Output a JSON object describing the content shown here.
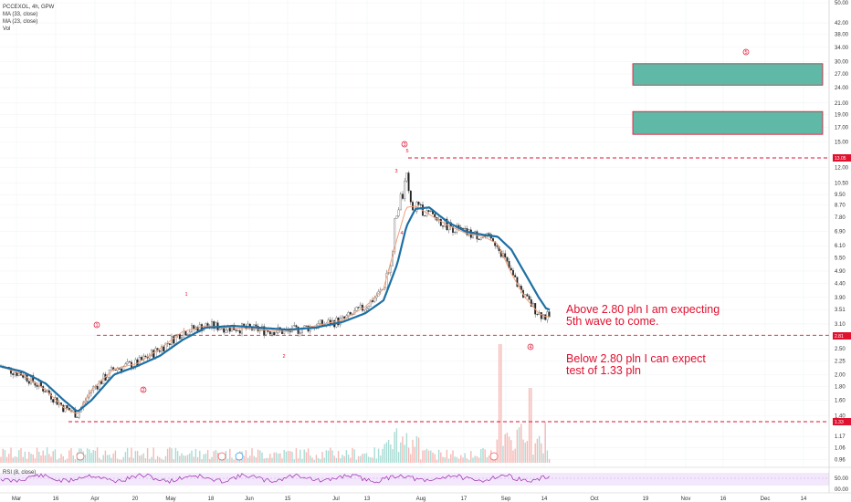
{
  "header": {
    "symbol_line": "PCCEXOL, 4h, GPW",
    "ma1": "MA (33, close)",
    "ma2": "MA (23, close)",
    "vol": "Vol",
    "rsi": "RSI (8, close)"
  },
  "annotations": {
    "bull_line1": "Above 2.80 pln I am expecting",
    "bull_line2": "5th wave to come.",
    "bear_line1": "Below 2.80 pln I can expect",
    "bear_line2": "test of 1.33 pln"
  },
  "wave_labels": {
    "w1": "1",
    "w2": "2",
    "w3": "3",
    "w4": "4",
    "w5": "5",
    "sub1": "1",
    "sub2": "2",
    "sub3": "3",
    "sub4": "4",
    "sub5": "5"
  },
  "price_tags": {
    "top": "13.05",
    "mid": "2.81",
    "low": "1.33"
  },
  "colors": {
    "up": "#26a69a",
    "down": "#ef5350",
    "ma_long": "#1e6fa3",
    "ma_short": "#f0a07a",
    "target": "#5fb9a6",
    "level": "#e0102f",
    "rsi": "#9c27b0",
    "vol_up": "#a9dcd5",
    "vol_down": "#f6b8b5"
  },
  "chart_data": {
    "type": "candlestick",
    "symbol": "PCCEXOL",
    "timeframe": "4h",
    "exchange": "GPW",
    "y_scale": "log",
    "ylim": [
      0.9,
      50
    ],
    "y_ticks": [
      "50.00",
      "42.00",
      "38.00",
      "34.00",
      "30.00",
      "27.00",
      "24.00",
      "21.00",
      "19.00",
      "17.00",
      "15.00",
      "13.05",
      "12.00",
      "10.50",
      "9.50",
      "8.70",
      "7.80",
      "6.90",
      "6.10",
      "5.50",
      "4.90",
      "4.40",
      "3.90",
      "3.51",
      "3.10",
      "2.81",
      "2.50",
      "2.25",
      "2.00",
      "1.80",
      "1.60",
      "1.40",
      "1.33",
      "1.17",
      "1.06",
      "0.96"
    ],
    "rsi_ticks": [
      "50.00",
      "00.00"
    ],
    "x_ticks": [
      "Mar",
      "16",
      "Apr",
      "20",
      "May",
      "18",
      "Jun",
      "15",
      "Jul",
      "13",
      "Aug",
      "17",
      "Sep",
      "14",
      "Oct",
      "19",
      "Nov",
      "16",
      "Dec",
      "14"
    ],
    "series": [
      {
        "name": "MA (33, close)",
        "points": [
          [
            0,
            2.15
          ],
          [
            25,
            2.05
          ],
          [
            50,
            1.85
          ],
          [
            70,
            1.6
          ],
          [
            85,
            1.45
          ],
          [
            100,
            1.6
          ],
          [
            125,
            2.0
          ],
          [
            150,
            2.15
          ],
          [
            175,
            2.35
          ],
          [
            200,
            2.7
          ],
          [
            225,
            3.0
          ],
          [
            255,
            3.05
          ],
          [
            285,
            3.0
          ],
          [
            315,
            2.95
          ],
          [
            345,
            3.0
          ],
          [
            375,
            3.15
          ],
          [
            400,
            3.4
          ],
          [
            420,
            3.8
          ],
          [
            435,
            5.2
          ],
          [
            445,
            7.2
          ],
          [
            455,
            8.4
          ],
          [
            470,
            8.5
          ],
          [
            490,
            7.5
          ],
          [
            510,
            6.9
          ],
          [
            530,
            6.7
          ],
          [
            545,
            6.6
          ],
          [
            560,
            5.9
          ],
          [
            575,
            4.8
          ],
          [
            590,
            3.9
          ],
          [
            598,
            3.55
          ],
          [
            603,
            3.5
          ]
        ]
      },
      {
        "name": "MA (23, close)",
        "points": [
          [
            0,
            2.15
          ],
          [
            25,
            2.0
          ],
          [
            50,
            1.75
          ],
          [
            70,
            1.5
          ],
          [
            85,
            1.42
          ],
          [
            100,
            1.75
          ],
          [
            125,
            2.1
          ],
          [
            150,
            2.2
          ],
          [
            175,
            2.5
          ],
          [
            200,
            2.9
          ],
          [
            225,
            3.05
          ],
          [
            255,
            3.0
          ],
          [
            285,
            2.95
          ],
          [
            315,
            2.9
          ],
          [
            345,
            3.05
          ],
          [
            375,
            3.2
          ],
          [
            400,
            3.6
          ],
          [
            420,
            4.2
          ],
          [
            435,
            6.5
          ],
          [
            445,
            8.5
          ],
          [
            455,
            8.6
          ],
          [
            470,
            8.0
          ],
          [
            490,
            7.3
          ],
          [
            510,
            6.8
          ],
          [
            530,
            6.6
          ],
          [
            545,
            6.2
          ],
          [
            560,
            4.8
          ],
          [
            575,
            3.9
          ],
          [
            590,
            3.4
          ],
          [
            598,
            3.3
          ],
          [
            603,
            3.3
          ]
        ]
      }
    ],
    "key_levels": [
      13.05,
      2.81,
      1.33
    ],
    "target_zones": [
      [
        24.5,
        29.5
      ],
      [
        16.0,
        19.5
      ]
    ],
    "wave_count": [
      {
        "label": "1",
        "x": 106,
        "y": 2.81
      },
      {
        "label": "2",
        "x": 157,
        "y": 1.92
      },
      {
        "label": "3",
        "x": 443,
        "y": 13.05
      },
      {
        "label": "4",
        "x": 581,
        "y": 2.81
      },
      {
        "label": "5",
        "x": 817,
        "y": 35.0
      }
    ],
    "last_price": 3.51
  }
}
